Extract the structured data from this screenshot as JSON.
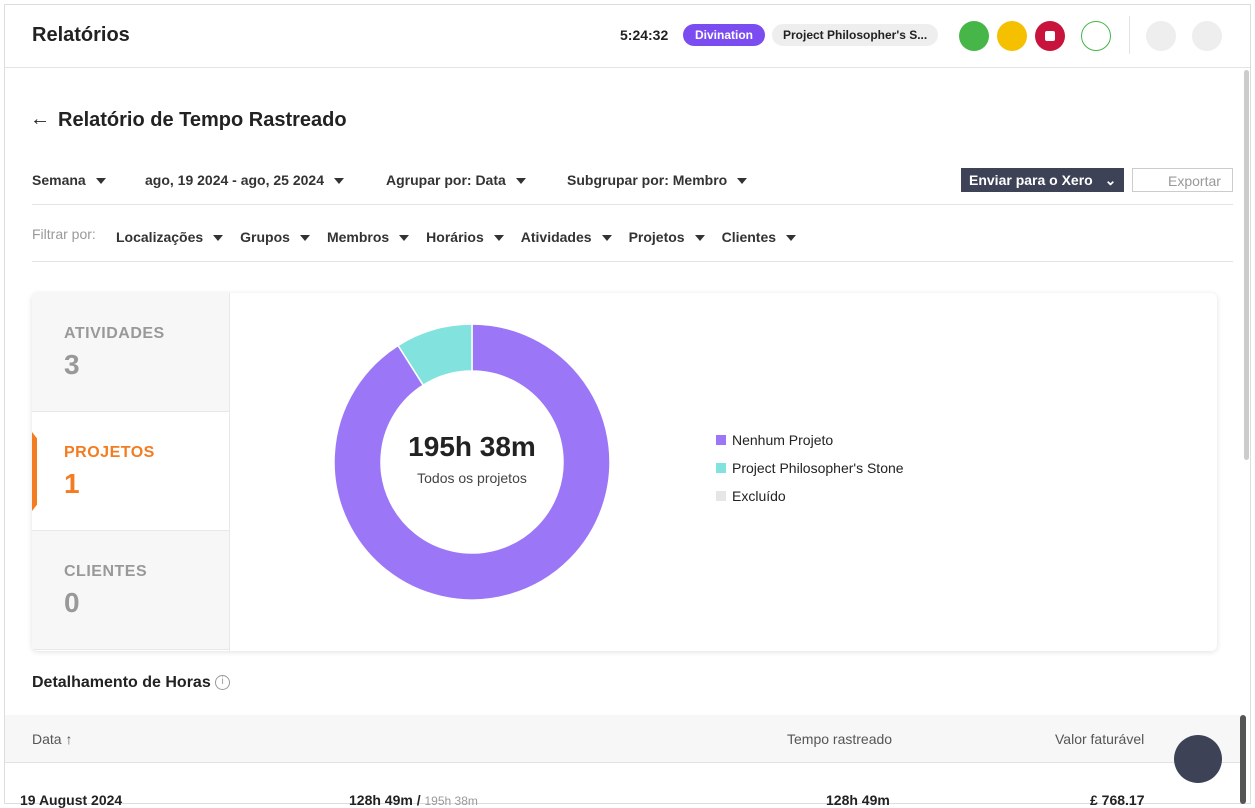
{
  "header": {
    "title": "Relatórios",
    "timer": "5:24:32",
    "badge": "Divination",
    "project": "Project Philosopher's S..."
  },
  "page": {
    "title": "Relatório de Tempo Rastreado"
  },
  "controls": {
    "period": "Semana",
    "range": "ago, 19 2024 - ago, 25 2024",
    "group": "Agrupar por: Data",
    "subgroup": "Subgrupar por: Membro",
    "xero": "Enviar para o Xero",
    "export": "Exportar"
  },
  "filters": {
    "label": "Filtrar por:",
    "items": [
      "Localizações",
      "Grupos",
      "Membros",
      "Horários",
      "Atividades",
      "Projetos",
      "Clientes"
    ]
  },
  "tabs": [
    {
      "label": "ATIVIDADES",
      "count": 3
    },
    {
      "label": "PROJETOS",
      "count": 1
    },
    {
      "label": "CLIENTES",
      "count": 0
    }
  ],
  "donut": {
    "total": "195h 38m",
    "subtitle": "Todos os projetos",
    "segments": [
      {
        "name": "Nenhum Projeto",
        "color": "#9b77f7",
        "value": 91
      },
      {
        "name": "Project Philosopher's Stone",
        "color": "#82e3de",
        "value": 9
      },
      {
        "name": "Excluído",
        "color": "#e6e6e6",
        "value": 0
      }
    ]
  },
  "section": {
    "title": "Detalhamento de Horas"
  },
  "table": {
    "headers": [
      "Data",
      "Tempo rastreado",
      "Valor faturável"
    ],
    "rows": [
      [
        "19 August 2024",
        "128h 49m /",
        "195h 38m",
        "128h 49m",
        "£ 768.17"
      ]
    ]
  }
}
